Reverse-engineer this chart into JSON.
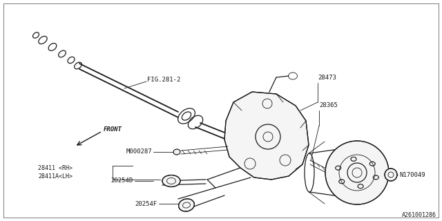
{
  "bg_color": "#ffffff",
  "lc": "#1a1a1a",
  "part_number": "A261001286",
  "labels": {
    "fig": "FIG.281-2",
    "front": "FRONT",
    "m000287": "M000287",
    "28473": "28473",
    "28365": "28365",
    "28411rh": "28411 <RH>",
    "28411lh": "28411A<LH>",
    "20254d": "20254D",
    "20254f": "20254F",
    "n170049": "N170049"
  },
  "figsize": [
    6.4,
    3.2
  ],
  "dpi": 100
}
